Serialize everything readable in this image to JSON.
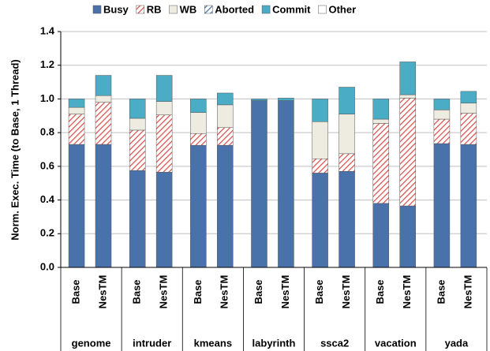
{
  "chart_data": {
    "type": "stacked_bar",
    "y_label": "Norm. Exec. Time (to Base, 1 Thread)",
    "categories": [
      "Base",
      "NesTM",
      "Base",
      "NesTM",
      "Base",
      "NesTM",
      "Base",
      "NesTM",
      "Base",
      "NesTM",
      "Base",
      "NesTM",
      "Base",
      "NesTM"
    ],
    "groups": [
      "genome",
      "intruder",
      "kmeans",
      "labyrinth",
      "ssca2",
      "vacation",
      "yada"
    ],
    "series": [
      {
        "name": "Busy",
        "color": "#4a72aa",
        "hatch": false,
        "values": [
          0.73,
          0.73,
          0.575,
          0.565,
          0.725,
          0.725,
          0.99,
          0.99,
          0.56,
          0.57,
          0.38,
          0.365,
          0.735,
          0.73
        ]
      },
      {
        "name": "RB",
        "color": "#d9504c",
        "hatch": true,
        "values": [
          0.18,
          0.25,
          0.24,
          0.34,
          0.07,
          0.105,
          0,
          0,
          0.085,
          0.105,
          0.475,
          0.64,
          0.145,
          0.185
        ]
      },
      {
        "name": "WB",
        "color": "#eeece1",
        "hatch": false,
        "values": [
          0.04,
          0.04,
          0.07,
          0.08,
          0.125,
          0.135,
          0,
          0,
          0.22,
          0.235,
          0.025,
          0.02,
          0.055,
          0.06
        ]
      },
      {
        "name": "Aborted",
        "color": "#4a72aa",
        "hatch": true,
        "values": [
          0,
          0,
          0,
          0,
          0,
          0,
          0,
          0,
          0,
          0,
          0,
          0,
          0,
          0
        ]
      },
      {
        "name": "Commit",
        "color": "#4bacc6",
        "hatch": false,
        "values": [
          0.05,
          0.12,
          0.115,
          0.155,
          0.08,
          0.07,
          0.01,
          0.015,
          0.135,
          0.16,
          0.12,
          0.195,
          0.065,
          0.07
        ]
      },
      {
        "name": "Other",
        "color": "#ffffff",
        "hatch": false,
        "values": [
          0,
          0,
          0,
          0,
          0,
          0,
          0,
          0,
          0,
          0,
          0,
          0,
          0,
          0
        ]
      }
    ],
    "ylim": [
      0,
      1.4
    ],
    "yticks": [
      {
        "value": 0,
        "label": "0.0"
      },
      0.2,
      0.4,
      0.6,
      0.8,
      {
        "value": 1,
        "label": "1.0"
      },
      1.2,
      1.4
    ],
    "grid": true,
    "legend": "top"
  }
}
